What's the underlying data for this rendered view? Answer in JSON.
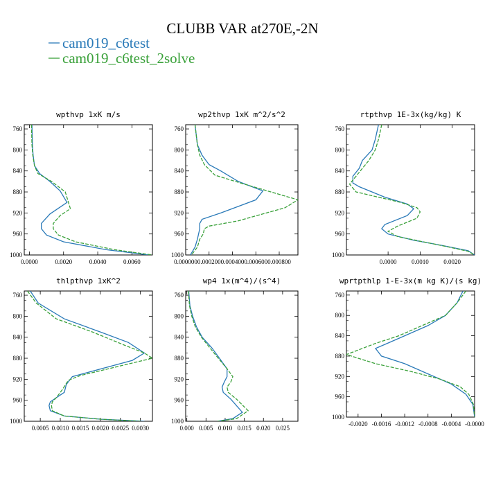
{
  "figure": {
    "title": "CLUBB VAR at270E,-2N",
    "legend": [
      {
        "label": "cam019_c6test",
        "color": "#2a7ab8"
      },
      {
        "label": "cam019_c6test_2solve",
        "color": "#3aa13a"
      }
    ]
  },
  "chart_data": [
    {
      "type": "line",
      "title": "wpthvp   1xK m/s",
      "xlim": [
        -0.0003,
        0.0072
      ],
      "ylim": [
        1000,
        752
      ],
      "xticks": [
        0.0,
        0.002,
        0.004,
        0.006
      ],
      "xtick_labels": [
        "0.0000",
        "0.0020",
        "0.0040",
        "0.0060"
      ],
      "yticks": [
        760,
        800,
        840,
        880,
        920,
        960,
        1000
      ],
      "ytick_labels": [
        "760",
        "800",
        "840",
        "880",
        "920",
        "960",
        "1000"
      ],
      "series": [
        {
          "name": "cam019_c6test",
          "x": [
            0.00015,
            0.00018,
            0.00022,
            0.0003,
            0.0006,
            0.0012,
            0.0018,
            0.0022,
            0.0012,
            0.0007,
            0.0007,
            0.001,
            0.002,
            0.0045,
            0.007
          ],
          "y": [
            752,
            790,
            810,
            830,
            845,
            860,
            878,
            900,
            922,
            940,
            950,
            962,
            975,
            990,
            1000
          ]
        },
        {
          "name": "cam019_c6test_2solve",
          "x": [
            0.00012,
            0.00015,
            0.0002,
            0.0003,
            0.0005,
            0.0013,
            0.0021,
            0.0024,
            0.0018,
            0.0014,
            0.0014,
            0.0017,
            0.0027,
            0.005,
            0.0072
          ],
          "y": [
            752,
            790,
            810,
            830,
            845,
            860,
            880,
            912,
            925,
            940,
            950,
            962,
            975,
            990,
            1000
          ]
        }
      ]
    },
    {
      "type": "line",
      "title": "wp2thvp   1xK m^2/s^2",
      "xlim": [
        0.0,
        0.00096
      ],
      "ylim": [
        1000,
        752
      ],
      "xticks": [
        0.0,
        0.0002,
        0.0004,
        0.0006,
        0.0008
      ],
      "xtick_labels": [
        "0.000000",
        "0.000200",
        "0.000400",
        "0.000600",
        "0.000800"
      ],
      "yticks": [
        760,
        800,
        840,
        880,
        920,
        960,
        1000
      ],
      "ytick_labels": [
        "760",
        "800",
        "840",
        "880",
        "920",
        "960",
        "1000"
      ],
      "series": [
        {
          "name": "cam019_c6test",
          "x": [
            8e-05,
            0.0001,
            0.00014,
            0.0002,
            0.0003,
            0.00045,
            0.00066,
            0.0006,
            0.0003,
            0.00014,
            0.00012,
            0.00012,
            0.0001,
            8e-05,
            4e-05
          ],
          "y": [
            752,
            790,
            810,
            828,
            840,
            860,
            878,
            895,
            920,
            932,
            940,
            950,
            970,
            985,
            1000
          ]
        },
        {
          "name": "cam019_c6test_2solve",
          "x": [
            8e-05,
            0.0001,
            0.00012,
            0.00016,
            0.00025,
            0.0005,
            0.00096,
            0.00085,
            0.00045,
            0.0002,
            0.00016,
            0.00015,
            0.00012,
            0.0001,
            5e-05
          ],
          "y": [
            752,
            790,
            810,
            828,
            848,
            865,
            895,
            910,
            935,
            945,
            950,
            960,
            970,
            985,
            1000
          ]
        }
      ]
    },
    {
      "type": "line",
      "title": "rtpthvp   1E-3x(kg/kg) K",
      "xlim": [
        -0.0013,
        0.0027
      ],
      "ylim": [
        1000,
        752
      ],
      "xticks": [
        0.0,
        0.001,
        0.002
      ],
      "xtick_labels": [
        "0.0000",
        "0.0010",
        "0.0020"
      ],
      "yticks": [
        760,
        800,
        840,
        880,
        920,
        960,
        1000
      ],
      "ytick_labels": [
        "760",
        "800",
        "840",
        "880",
        "920",
        "960",
        "1000"
      ],
      "series": [
        {
          "name": "cam019_c6test",
          "x": [
            -0.0003,
            -0.0004,
            -0.0005,
            -0.0008,
            -0.0009,
            -0.0011,
            -0.0011,
            -0.0009,
            -0.0001,
            0.0006,
            0.0008,
            0.0006,
            -0.0001,
            -0.0002,
            0.0,
            0.0008,
            0.0017,
            0.0025,
            0.0027
          ],
          "y": [
            752,
            780,
            800,
            820,
            835,
            850,
            863,
            870,
            890,
            903,
            912,
            925,
            942,
            950,
            960,
            972,
            982,
            992,
            1000
          ]
        },
        {
          "name": "cam019_c6test_2solve",
          "x": [
            -0.0002,
            -0.0003,
            -0.0004,
            -0.0006,
            -0.0008,
            -0.001,
            -0.0012,
            -0.001,
            0.0004,
            0.0009,
            0.001,
            0.0009,
            0.0003,
            0.0,
            0.0003,
            0.0011,
            0.0019,
            0.0025,
            0.0027
          ],
          "y": [
            752,
            780,
            800,
            820,
            835,
            850,
            865,
            880,
            900,
            910,
            918,
            930,
            945,
            955,
            965,
            975,
            985,
            993,
            1000
          ]
        }
      ]
    },
    {
      "type": "line",
      "title": "thlpthvp   1xK^2",
      "xlim": [
        0.0001,
        0.0033
      ],
      "ylim": [
        1000,
        752
      ],
      "xticks": [
        0.0005,
        0.001,
        0.0015,
        0.002,
        0.0025,
        0.003
      ],
      "xtick_labels": [
        "0.0005",
        "0.0010",
        "0.0015",
        "0.0020",
        "0.0025",
        "0.0030"
      ],
      "yticks": [
        760,
        800,
        840,
        880,
        920,
        960,
        1000
      ],
      "ytick_labels": [
        "760",
        "800",
        "840",
        "880",
        "920",
        "960",
        "1000"
      ],
      "series": [
        {
          "name": "cam019_c6test",
          "x": [
            0.00025,
            0.00045,
            0.0011,
            0.002,
            0.0027,
            0.0031,
            0.0028,
            0.0013,
            0.00115,
            0.0011,
            0.0009,
            0.00075,
            0.00072,
            0.00075,
            0.0011,
            0.002,
            0.0031
          ],
          "y": [
            752,
            775,
            805,
            830,
            850,
            870,
            884,
            915,
            930,
            945,
            955,
            963,
            970,
            980,
            990,
            996,
            1000
          ]
        },
        {
          "name": "cam019_c6test_2solve",
          "x": [
            0.00018,
            0.0004,
            0.0009,
            0.0018,
            0.0026,
            0.0031,
            0.0033,
            0.0015,
            0.0012,
            0.00105,
            0.0009,
            0.0008,
            0.00078,
            0.0008,
            0.0011,
            0.002,
            0.003
          ],
          "y": [
            752,
            775,
            805,
            830,
            855,
            870,
            880,
            913,
            922,
            940,
            955,
            963,
            970,
            980,
            990,
            996,
            1000
          ]
        }
      ]
    },
    {
      "type": "line",
      "title": "wp4   1x(m^4)/(s^4)",
      "xlim": [
        -0.0003,
        0.029
      ],
      "ylim": [
        1000,
        752
      ],
      "xticks": [
        0.0,
        0.005,
        0.01,
        0.015,
        0.02,
        0.025
      ],
      "xtick_labels": [
        "0.000",
        "0.005",
        "0.010",
        "0.015",
        "0.020",
        "0.025"
      ],
      "yticks": [
        760,
        800,
        840,
        880,
        920,
        960,
        1000
      ],
      "ytick_labels": [
        "760",
        "800",
        "840",
        "880",
        "920",
        "960",
        "1000"
      ],
      "series": [
        {
          "name": "cam019_c6test",
          "x": [
            0.0005,
            0.0008,
            0.0015,
            0.0025,
            0.004,
            0.0065,
            0.0085,
            0.0105,
            0.0105,
            0.0098,
            0.0092,
            0.0095,
            0.0115,
            0.0145,
            0.012,
            0.008
          ],
          "y": [
            752,
            780,
            800,
            820,
            840,
            860,
            880,
            900,
            915,
            925,
            935,
            945,
            958,
            983,
            995,
            1000
          ]
        },
        {
          "name": "cam019_c6test_2solve",
          "x": [
            0.0004,
            0.0007,
            0.0013,
            0.0022,
            0.0038,
            0.006,
            0.0082,
            0.0105,
            0.012,
            0.0115,
            0.0105,
            0.0108,
            0.013,
            0.016,
            0.013,
            0.008
          ],
          "y": [
            752,
            780,
            800,
            820,
            840,
            860,
            880,
            900,
            915,
            925,
            935,
            945,
            958,
            980,
            995,
            1000
          ]
        }
      ]
    },
    {
      "type": "line",
      "title": "wprtpthlp   1-E-3x(m kg K)/(s kg)",
      "xlim": [
        -0.0022,
        0.0
      ],
      "ylim": [
        1000,
        752
      ],
      "xticks": [
        -0.002,
        -0.0016,
        -0.0012,
        -0.0008,
        -0.0004,
        0.0
      ],
      "xtick_labels": [
        "-0.0020",
        "-0.0016",
        "-0.0012",
        "-0.0008",
        "-0.0004",
        "-0.0000"
      ],
      "yticks": [
        760,
        800,
        840,
        880,
        920,
        960,
        1000
      ],
      "ytick_labels": [
        "760",
        "800",
        "840",
        "880",
        "920",
        "960",
        "1000"
      ],
      "series": [
        {
          "name": "cam019_c6test",
          "x": [
            -0.0002,
            -0.0003,
            -0.0005,
            -0.0008,
            -0.0012,
            -0.0015,
            -0.0017,
            -0.0016,
            -0.0012,
            -0.0008,
            -0.0004,
            -0.00015,
            -3e-05,
            0.0
          ],
          "y": [
            752,
            775,
            800,
            820,
            840,
            855,
            865,
            880,
            895,
            915,
            935,
            955,
            975,
            1000
          ]
        },
        {
          "name": "cam019_c6test_2solve",
          "x": [
            -0.00015,
            -0.0003,
            -0.0005,
            -0.0009,
            -0.0013,
            -0.0017,
            -0.0022,
            -0.0017,
            -0.0011,
            -0.0006,
            -0.00025,
            -0.0001,
            -2e-05,
            0.0
          ],
          "y": [
            752,
            775,
            800,
            820,
            840,
            855,
            877,
            895,
            910,
            925,
            940,
            955,
            975,
            1000
          ]
        }
      ]
    }
  ]
}
